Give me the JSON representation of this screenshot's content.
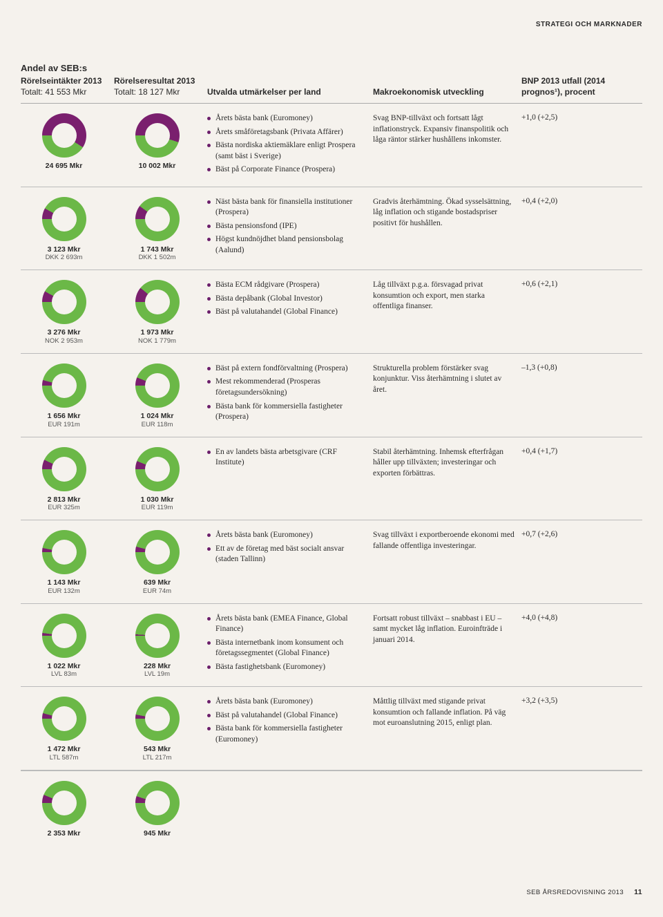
{
  "colors": {
    "green": "#6bb847",
    "purple": "#7a1f6e",
    "bg": "#f5f2ed"
  },
  "topright": "STRATEGI OCH MARKNADER",
  "header": {
    "main": "Andel av SEB:s",
    "col1_line1": "Rörelseintäkter 2013",
    "col1_line2": "Totalt: 41 553 Mkr",
    "col2_line1": "Rörelseresultat 2013",
    "col2_line2": "Totalt: 18 127 Mkr",
    "col3": "Utvalda utmärkelser per land",
    "col4": "Makroekonomisk utveckling",
    "col5": "BNP 2013 utfall (2014 prognos¹), procent"
  },
  "rows": [
    {
      "d1": {
        "pct": 59,
        "label": "24 695 Mkr",
        "sub": ""
      },
      "d2": {
        "pct": 55,
        "label": "10 002 Mkr",
        "sub": ""
      },
      "awards": [
        "Årets bästa bank (Euromoney)",
        "Årets småföretagsbank (Privata Affärer)",
        "Bästa nordiska aktiemäklare enligt Prospera (samt bäst i Sverige)",
        "Bäst på Corporate Finance (Prospera)"
      ],
      "macro": "Svag BNP-tillväxt och fortsatt lågt inflationstryck. Expansiv finanspolitik och låga räntor stärker hushållens inkomster.",
      "gdp": "+1,0 (+2,5)"
    },
    {
      "d1": {
        "pct": 8,
        "label": "3 123 Mkr",
        "sub": "DKK 2 693m"
      },
      "d2": {
        "pct": 10,
        "label": "1 743 Mkr",
        "sub": "DKK 1 502m"
      },
      "awards": [
        "Näst bästa bank för finansiella institutioner (Prospera)",
        "Bästa pensionsfond (IPE)",
        "Högst kundnöjdhet bland pensionsbolag (Aalund)"
      ],
      "macro": "Gradvis återhämtning. Ökad sysselsättning, låg inflation och stigande bostadspriser positivt för hushållen.",
      "gdp": "+0,4 (+2,0)"
    },
    {
      "d1": {
        "pct": 8,
        "label": "3 276 Mkr",
        "sub": "NOK 2 953m"
      },
      "d2": {
        "pct": 11,
        "label": "1 973 Mkr",
        "sub": "NOK 1 779m"
      },
      "awards": [
        "Bästa ECM rådgivare (Prospera)",
        "Bästa depåbank (Global Investor)",
        "Bäst på valutahandel (Global Finance)"
      ],
      "macro": "Låg tillväxt p.g.a. försvagad privat konsumtion och export, men starka offentliga finanser.",
      "gdp": "+0,6 (+2,1)"
    },
    {
      "d1": {
        "pct": 4,
        "label": "1 656 Mkr",
        "sub": "EUR 191m"
      },
      "d2": {
        "pct": 6,
        "label": "1 024 Mkr",
        "sub": "EUR 118m"
      },
      "awards": [
        "Bäst på extern fondförvaltning (Prospera)",
        "Mest rekommenderad (Prosperas företagsundersökning)",
        "Bästa bank för kommersiella fastigheter (Prospera)"
      ],
      "macro": "Strukturella problem förstärker svag konjunktur. Viss återhämtning i slutet av året.",
      "gdp": "–1,3 (+0,8)"
    },
    {
      "d1": {
        "pct": 7,
        "label": "2 813 Mkr",
        "sub": "EUR 325m"
      },
      "d2": {
        "pct": 6,
        "label": "1 030 Mkr",
        "sub": "EUR 119m"
      },
      "awards": [
        "En av landets bästa arbetsgivare (CRF Institute)"
      ],
      "macro": "Stabil återhämtning. Inhemsk efterfrågan håller upp tillväxten; investeringar och exporten förbättras.",
      "gdp": "+0,4 (+1,7)"
    },
    {
      "d1": {
        "pct": 3,
        "label": "1 143 Mkr",
        "sub": "EUR 132m"
      },
      "d2": {
        "pct": 4,
        "label": "639 Mkr",
        "sub": "EUR 74m"
      },
      "awards": [
        "Årets bästa bank (Euromoney)",
        "Ett av de företag med bäst socialt ansvar (staden Tallinn)"
      ],
      "macro": "Svag tillväxt i exportberoende ekonomi med fallande offentliga investeringar.",
      "gdp": "+0,7 (+2,6)"
    },
    {
      "d1": {
        "pct": 2,
        "label": "1 022 Mkr",
        "sub": "LVL 83m"
      },
      "d2": {
        "pct": 1,
        "label": "228 Mkr",
        "sub": "LVL 19m"
      },
      "awards": [
        "Årets bästa bank (EMEA Finance, Global Finance)",
        "Bästa internetbank inom konsument och företagssegmentet (Global Finance)",
        "Bästa fastighetsbank (Euromoney)"
      ],
      "macro": "Fortsatt robust tillväxt – snabbast i EU – samt mycket låg inflation. Euroinfträde i januari 2014.",
      "gdp": "+4,0 (+4,8)"
    },
    {
      "d1": {
        "pct": 4,
        "label": "1 472 Mkr",
        "sub": "LTL 587m"
      },
      "d2": {
        "pct": 3,
        "label": "543 Mkr",
        "sub": "LTL 217m"
      },
      "awards": [
        "Årets bästa bank (Euromoney)",
        "Bäst på valutahandel (Global Finance)",
        "Bästa bank för kommersiella fastigheter (Euromoney)"
      ],
      "macro": "Måttlig tillväxt med stigande privat konsumtion och fallande inflation. På väg mot euroanslutning 2015, enligt plan.",
      "gdp": "+3,2 (+3,5)"
    }
  ],
  "footer_row": {
    "d1": {
      "pct": 6,
      "label": "2 353 Mkr",
      "sub": ""
    },
    "d2": {
      "pct": 5,
      "label": "945 Mkr",
      "sub": ""
    }
  },
  "footer": {
    "text": "SEB ÅRSREDOVISNING 2013",
    "page": "11"
  }
}
